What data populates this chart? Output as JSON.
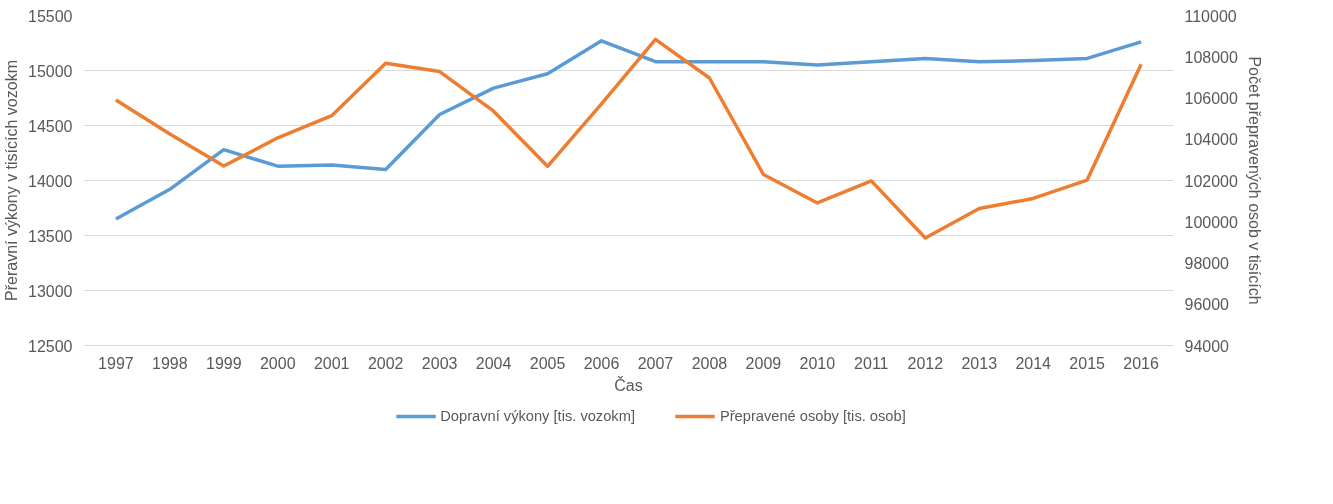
{
  "chart_data": {
    "type": "line",
    "xlabel": "Čas",
    "ylabel": "Přeravní výkony v tisících vozokm",
    "y2label": "Počet přepravených osob v tisících",
    "categories": [
      "1997",
      "1998",
      "1999",
      "2000",
      "2001",
      "2002",
      "2003",
      "2004",
      "2005",
      "2006",
      "2007",
      "2008",
      "2009",
      "2010",
      "2011",
      "2012",
      "2013",
      "2014",
      "2015",
      "2016"
    ],
    "series": [
      {
        "name": "Dopravní výkony [tis. vozokm]",
        "color": "#5b9bd5",
        "values": [
          13650,
          13920,
          14280,
          14130,
          14140,
          14100,
          14600,
          14840,
          14970,
          15270,
          15080,
          15080,
          15080,
          15050,
          15080,
          15110,
          15080,
          15090,
          15110,
          15260
        ]
      },
      {
        "name": "Přepravené osoby [tis. osob]",
        "color": "#ed7d31",
        "axis": "y2",
        "values": [
          105900,
          104250,
          102700,
          104070,
          105140,
          107680,
          107280,
          105360,
          102690,
          105720,
          108840,
          106970,
          102290,
          100910,
          101980,
          99210,
          100640,
          101130,
          102020,
          107640
        ]
      }
    ],
    "ylim": [
      12500,
      15500
    ],
    "yticks": [
      12500,
      13000,
      13500,
      14000,
      14500,
      15000,
      15500
    ],
    "y2lim": [
      94000,
      110000
    ],
    "y2ticks": [
      94000,
      96000,
      98000,
      100000,
      102000,
      104000,
      106000,
      108000,
      110000
    ],
    "grid": "y",
    "legend": "bottom",
    "marker": "none",
    "line_style": "solid"
  }
}
